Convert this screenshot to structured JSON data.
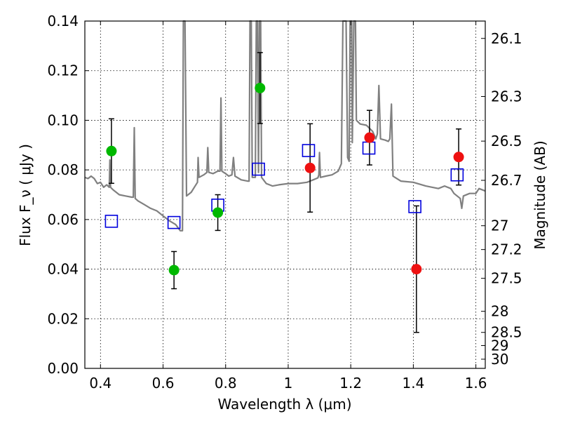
{
  "chart_data": {
    "type": "scatter",
    "xlabel": "Wavelength  λ (μm)",
    "ylabel": "Flux  F_ν  ( μJy )",
    "ylabel_right": "Magnitude (AB)",
    "xlim": [
      0.35,
      1.63
    ],
    "ylim": [
      0.0,
      0.14
    ],
    "grid": true,
    "x_ticks": [
      0.4,
      0.6,
      0.8,
      1.0,
      1.2,
      1.4,
      1.6
    ],
    "x_tick_labels": [
      "0.4",
      "0.6",
      "0.8",
      "1",
      "1.2",
      "1.4",
      "1.6"
    ],
    "y_ticks": [
      0.0,
      0.02,
      0.04,
      0.06,
      0.08,
      0.1,
      0.12,
      0.14
    ],
    "y_tick_labels": [
      "0.00",
      "0.02",
      "0.04",
      "0.06",
      "0.08",
      "0.10",
      "0.12",
      "0.14"
    ],
    "right_ticks": [
      {
        "flux": 0.133,
        "label": "26.1"
      },
      {
        "flux": 0.1096,
        "label": "26.3"
      },
      {
        "flux": 0.0916,
        "label": "26.5"
      },
      {
        "flux": 0.0758,
        "label": "26.7"
      },
      {
        "flux": 0.0575,
        "label": "27"
      },
      {
        "flux": 0.0479,
        "label": "27.2"
      },
      {
        "flux": 0.0363,
        "label": "27.5"
      },
      {
        "flux": 0.023,
        "label": "28"
      },
      {
        "flux": 0.0145,
        "label": "28.5"
      },
      {
        "flux": 0.0092,
        "label": "29"
      },
      {
        "flux": 0.0037,
        "label": "30"
      }
    ],
    "series": [
      {
        "color": "#00b800",
        "marker": "circle",
        "points": [
          {
            "x": 0.435,
            "y": 0.0876,
            "err": 0.013
          },
          {
            "x": 0.635,
            "y": 0.0396,
            "err": 0.0075
          },
          {
            "x": 0.775,
            "y": 0.0628,
            "err": 0.0072
          },
          {
            "x": 0.91,
            "y": 0.113,
            "err": 0.0143
          }
        ]
      },
      {
        "color": "#ee1111",
        "marker": "circle",
        "points": [
          {
            "x": 1.07,
            "y": 0.0808,
            "err": 0.0178
          },
          {
            "x": 1.26,
            "y": 0.093,
            "err": 0.011
          },
          {
            "x": 1.41,
            "y": 0.04,
            "err": 0.0255
          },
          {
            "x": 1.545,
            "y": 0.0852,
            "err": 0.0113
          }
        ]
      },
      {
        "color": "#0000dd",
        "marker": "open-square",
        "points": [
          {
            "x": 0.435,
            "y": 0.0593
          },
          {
            "x": 0.635,
            "y": 0.0588
          },
          {
            "x": 0.775,
            "y": 0.0658
          },
          {
            "x": 0.905,
            "y": 0.0803
          },
          {
            "x": 1.065,
            "y": 0.0878
          },
          {
            "x": 1.258,
            "y": 0.0888
          },
          {
            "x": 1.405,
            "y": 0.0652
          },
          {
            "x": 1.54,
            "y": 0.078
          }
        ]
      }
    ],
    "template_spectrum": {
      "color": "#808080",
      "points": [
        [
          0.35,
          0.077
        ],
        [
          0.36,
          0.0765
        ],
        [
          0.37,
          0.0775
        ],
        [
          0.38,
          0.0765
        ],
        [
          0.39,
          0.0745
        ],
        [
          0.4,
          0.075
        ],
        [
          0.41,
          0.073
        ],
        [
          0.42,
          0.074
        ],
        [
          0.428,
          0.073
        ],
        [
          0.43,
          0.084
        ],
        [
          0.432,
          0.073
        ],
        [
          0.44,
          0.072
        ],
        [
          0.46,
          0.07
        ],
        [
          0.48,
          0.0695
        ],
        [
          0.5,
          0.069
        ],
        [
          0.505,
          0.069
        ],
        [
          0.508,
          0.097
        ],
        [
          0.511,
          0.0685
        ],
        [
          0.52,
          0.0675
        ],
        [
          0.54,
          0.066
        ],
        [
          0.56,
          0.0645
        ],
        [
          0.58,
          0.0635
        ],
        [
          0.6,
          0.0615
        ],
        [
          0.62,
          0.0595
        ],
        [
          0.64,
          0.058
        ],
        [
          0.655,
          0.0555
        ],
        [
          0.662,
          0.0555
        ],
        [
          0.665,
          0.14
        ],
        [
          0.67,
          0.14
        ],
        [
          0.675,
          0.0695
        ],
        [
          0.69,
          0.071
        ],
        [
          0.7,
          0.073
        ],
        [
          0.71,
          0.075
        ],
        [
          0.712,
          0.085
        ],
        [
          0.715,
          0.077
        ],
        [
          0.73,
          0.078
        ],
        [
          0.74,
          0.079
        ],
        [
          0.743,
          0.089
        ],
        [
          0.746,
          0.079
        ],
        [
          0.76,
          0.0785
        ],
        [
          0.775,
          0.0795
        ],
        [
          0.782,
          0.0795
        ],
        [
          0.785,
          0.109
        ],
        [
          0.788,
          0.0795
        ],
        [
          0.8,
          0.0785
        ],
        [
          0.81,
          0.0775
        ],
        [
          0.82,
          0.078
        ],
        [
          0.825,
          0.085
        ],
        [
          0.83,
          0.0775
        ],
        [
          0.85,
          0.076
        ],
        [
          0.87,
          0.0755
        ],
        [
          0.875,
          0.0755
        ],
        [
          0.878,
          0.14
        ],
        [
          0.882,
          0.14
        ],
        [
          0.885,
          0.077
        ],
        [
          0.895,
          0.077
        ],
        [
          0.898,
          0.14
        ],
        [
          0.902,
          0.14
        ],
        [
          0.905,
          0.079
        ],
        [
          0.908,
          0.14
        ],
        [
          0.912,
          0.14
        ],
        [
          0.915,
          0.077
        ],
        [
          0.93,
          0.0745
        ],
        [
          0.95,
          0.0735
        ],
        [
          0.97,
          0.074
        ],
        [
          1.0,
          0.0745
        ],
        [
          1.03,
          0.0745
        ],
        [
          1.06,
          0.075
        ],
        [
          1.08,
          0.076
        ],
        [
          1.095,
          0.0768
        ],
        [
          1.098,
          0.078
        ],
        [
          1.1,
          0.087
        ],
        [
          1.103,
          0.077
        ],
        [
          1.12,
          0.0775
        ],
        [
          1.14,
          0.078
        ],
        [
          1.16,
          0.0795
        ],
        [
          1.17,
          0.0825
        ],
        [
          1.175,
          0.14
        ],
        [
          1.185,
          0.14
        ],
        [
          1.19,
          0.085
        ],
        [
          1.195,
          0.0835
        ],
        [
          1.198,
          0.14
        ],
        [
          1.203,
          0.14
        ],
        [
          1.205,
          0.091
        ],
        [
          1.21,
          0.14
        ],
        [
          1.215,
          0.14
        ],
        [
          1.218,
          0.1
        ],
        [
          1.23,
          0.0985
        ],
        [
          1.25,
          0.098
        ],
        [
          1.27,
          0.0955
        ],
        [
          1.28,
          0.0925
        ],
        [
          1.285,
          0.0945
        ],
        [
          1.29,
          0.114
        ],
        [
          1.295,
          0.0925
        ],
        [
          1.31,
          0.092
        ],
        [
          1.32,
          0.0915
        ],
        [
          1.325,
          0.0925
        ],
        [
          1.33,
          0.1065
        ],
        [
          1.335,
          0.0775
        ],
        [
          1.36,
          0.0755
        ],
        [
          1.4,
          0.075
        ],
        [
          1.44,
          0.0735
        ],
        [
          1.48,
          0.0725
        ],
        [
          1.5,
          0.0735
        ],
        [
          1.52,
          0.0725
        ],
        [
          1.53,
          0.0705
        ],
        [
          1.55,
          0.0685
        ],
        [
          1.555,
          0.0645
        ],
        [
          1.56,
          0.0695
        ],
        [
          1.58,
          0.0705
        ],
        [
          1.6,
          0.0705
        ],
        [
          1.61,
          0.0725
        ],
        [
          1.63,
          0.0715
        ]
      ]
    }
  }
}
